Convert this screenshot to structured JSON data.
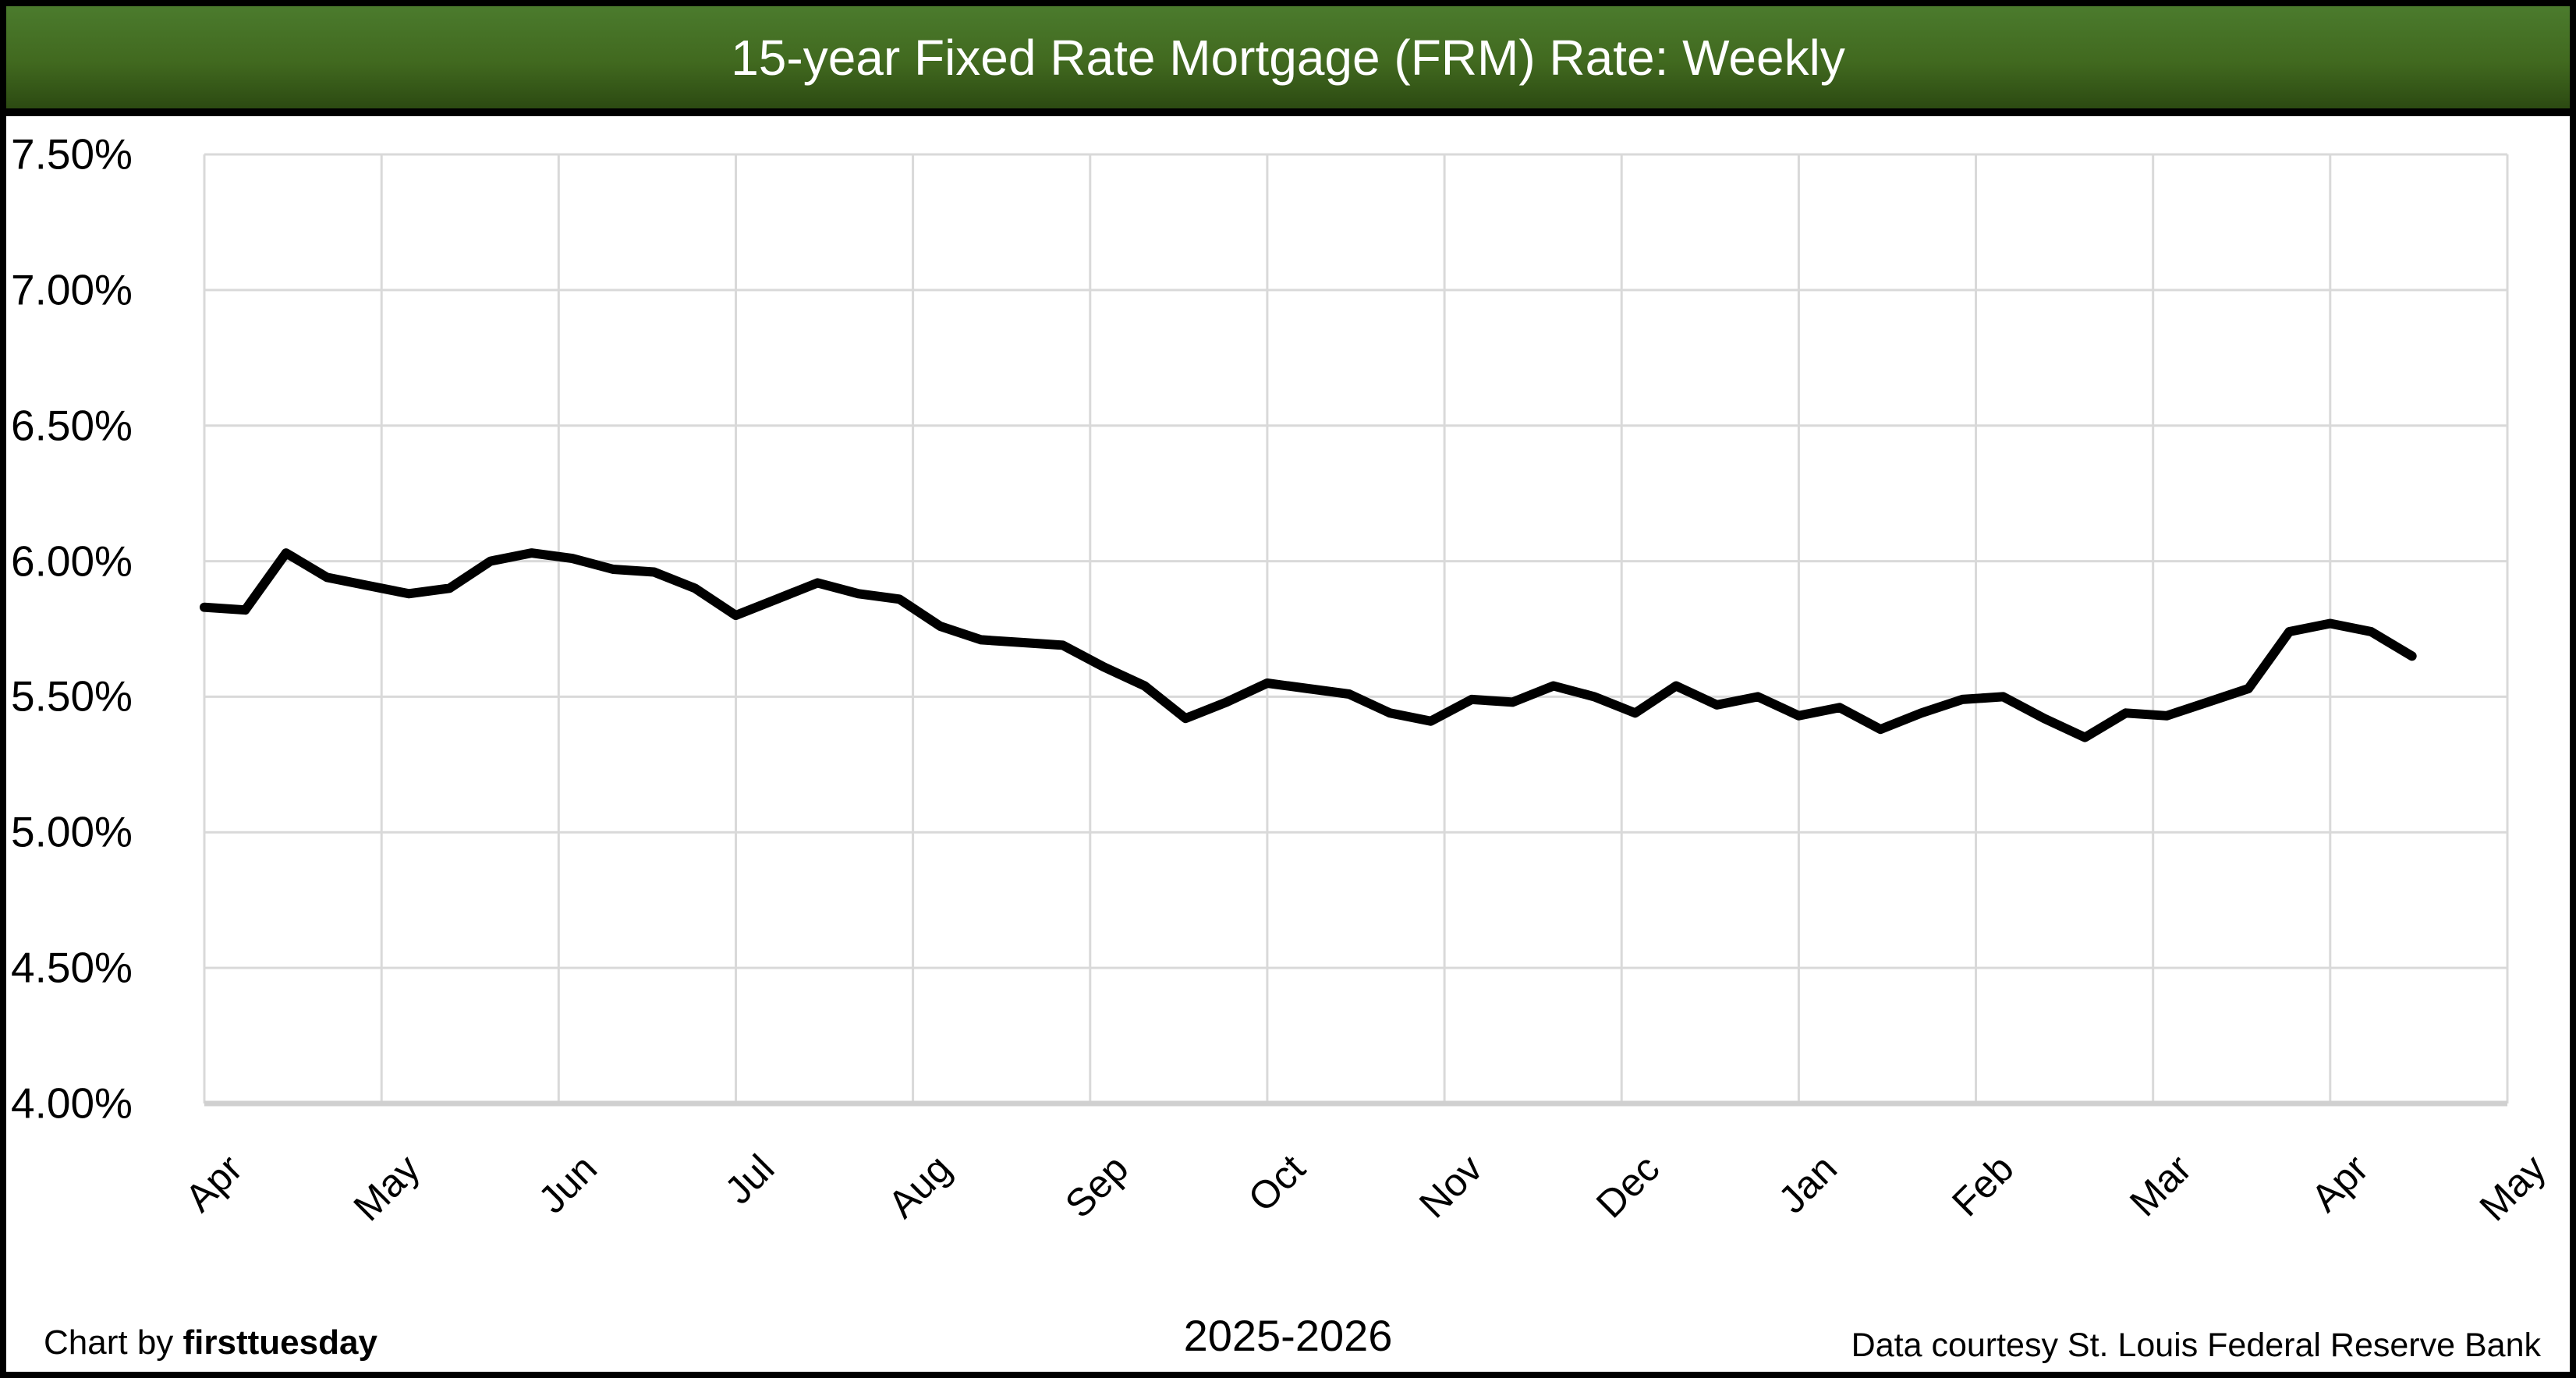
{
  "title": {
    "text": "15-year Fixed Rate Mortgage (FRM) Rate: Weekly"
  },
  "footer": {
    "credit_prefix": "Chart by ",
    "credit_brand": "firsttuesday",
    "period": "2025-2026",
    "source": "Data courtesy St. Louis Federal Reserve Bank"
  },
  "colors": {
    "banner_gradient_top": "#4b7b2d",
    "banner_gradient_bottom": "#2c4a12",
    "banner_text": "#ffffff",
    "line": "#000000",
    "gridline": "#d9d9d9",
    "axis_line": "#d0d0d0",
    "frame_border": "#000000",
    "background": "#ffffff"
  },
  "chart_data": {
    "type": "line",
    "title": "15-year Fixed Rate Mortgage (FRM) Rate: Weekly",
    "xlabel": "2025-2026",
    "ylabel": "",
    "grid": true,
    "legend": "none",
    "x_axis": {
      "tick_labels": [
        "Apr",
        "May",
        "Jun",
        "Jul",
        "Aug",
        "Sep",
        "Oct",
        "Nov",
        "Dec",
        "Jan",
        "Feb",
        "Mar",
        "Apr",
        "May"
      ],
      "tick_rotation_deg": 45
    },
    "y_axis": {
      "tick_labels": [
        "7.50%",
        "7.00%",
        "6.50%",
        "6.00%",
        "5.50%",
        "5.00%",
        "4.50%",
        "4.00%"
      ],
      "min": 4.0,
      "max": 7.5,
      "step": 0.5,
      "unit": "percent"
    },
    "series": [
      {
        "name": "15-year FRM rate",
        "color": "#000000",
        "weeks": [
          "2025-04-03",
          "2025-04-10",
          "2025-04-17",
          "2025-04-24",
          "2025-05-01",
          "2025-05-08",
          "2025-05-15",
          "2025-05-22",
          "2025-05-29",
          "2025-06-05",
          "2025-06-12",
          "2025-06-19",
          "2025-06-26",
          "2025-07-03",
          "2025-07-10",
          "2025-07-17",
          "2025-07-24",
          "2025-07-31",
          "2025-08-07",
          "2025-08-14",
          "2025-08-21",
          "2025-08-28",
          "2025-09-04",
          "2025-09-11",
          "2025-09-18",
          "2025-09-25",
          "2025-10-02",
          "2025-10-09",
          "2025-10-16",
          "2025-10-23",
          "2025-10-30",
          "2025-11-06",
          "2025-11-13",
          "2025-11-20",
          "2025-11-27",
          "2025-12-04",
          "2025-12-11",
          "2025-12-18",
          "2025-12-25",
          "2026-01-01",
          "2026-01-08",
          "2026-01-15",
          "2026-01-22",
          "2026-01-29",
          "2026-02-05",
          "2026-02-12",
          "2026-02-19",
          "2026-02-26",
          "2026-03-05",
          "2026-03-12",
          "2026-03-19",
          "2026-03-26",
          "2026-04-02",
          "2026-04-09",
          "2026-04-16"
        ],
        "values": [
          5.83,
          5.82,
          6.03,
          5.94,
          5.91,
          5.88,
          5.9,
          6.0,
          6.03,
          6.01,
          5.97,
          5.96,
          5.9,
          5.8,
          5.86,
          5.92,
          5.88,
          5.86,
          5.76,
          5.71,
          5.7,
          5.69,
          5.61,
          5.54,
          5.42,
          5.48,
          5.55,
          5.53,
          5.51,
          5.44,
          5.41,
          5.49,
          5.48,
          5.54,
          5.5,
          5.44,
          5.54,
          5.47,
          5.5,
          5.43,
          5.46,
          5.38,
          5.44,
          5.49,
          5.5,
          5.42,
          5.35,
          5.44,
          5.43,
          5.48,
          5.53,
          5.74,
          5.77,
          5.74,
          5.65
        ]
      }
    ]
  }
}
